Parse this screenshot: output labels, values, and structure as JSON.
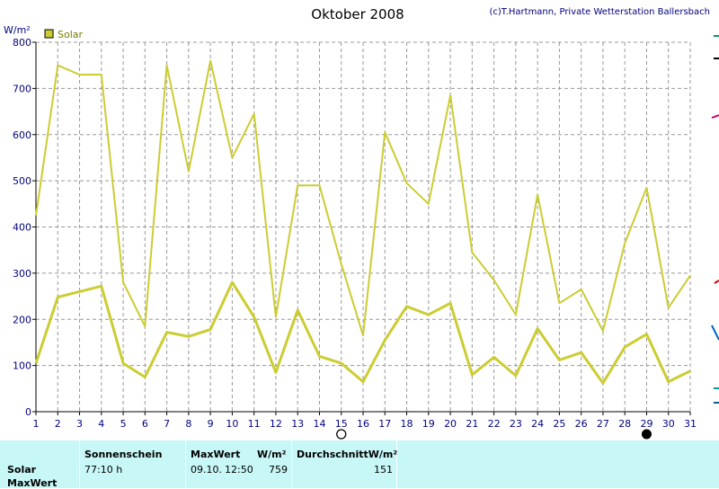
{
  "header": {
    "title": "Oktober 2008",
    "credit": "(c)T.Hartmann, Private Wetterstation Ballersbach",
    "unit": "W/m²",
    "legend_label": "Solar",
    "series_color": "#cccc33",
    "panel_color": "#c8f7f7"
  },
  "chart_data": {
    "type": "line",
    "title": "Oktober 2008",
    "ylabel": "W/m²",
    "xlabel": "",
    "x": [
      1,
      2,
      3,
      4,
      5,
      6,
      7,
      8,
      9,
      10,
      11,
      12,
      13,
      14,
      15,
      16,
      17,
      18,
      19,
      20,
      21,
      22,
      23,
      24,
      25,
      26,
      27,
      28,
      29,
      30,
      31
    ],
    "xlim": [
      1,
      31
    ],
    "ylim": [
      0,
      800
    ],
    "y_ticks": [
      0,
      100,
      200,
      300,
      400,
      500,
      600,
      700,
      800
    ],
    "grid": true,
    "legend": "top-left",
    "moon_markers": {
      "full_moon_day": 15,
      "new_moon_day": 29
    },
    "series": [
      {
        "name": "Solar",
        "role": "max",
        "values": [
          425,
          750,
          730,
          730,
          280,
          185,
          750,
          520,
          760,
          550,
          645,
          205,
          490,
          490,
          320,
          165,
          605,
          495,
          450,
          685,
          345,
          285,
          210,
          470,
          235,
          265,
          175,
          365,
          485,
          225,
          295
        ]
      },
      {
        "name": "Solar",
        "role": "avg",
        "values": [
          105,
          248,
          260,
          272,
          105,
          75,
          172,
          163,
          178,
          280,
          205,
          85,
          220,
          120,
          105,
          65,
          155,
          228,
          210,
          235,
          80,
          118,
          78,
          180,
          112,
          128,
          62,
          140,
          168,
          65,
          88
        ]
      }
    ]
  },
  "panel": {
    "col_sun_header": "Sonnenschein",
    "col_max_header": "MaxWert",
    "col_max_unit": "W/m²",
    "col_avg_header": "DurchschnittW/m²",
    "row1_label": "Solar",
    "row2_label": "MaxWert",
    "sun_value": "77:10 h",
    "max_date": "09.10.",
    "max_time": "12:50",
    "max_value": "759",
    "avg_value": "151"
  }
}
